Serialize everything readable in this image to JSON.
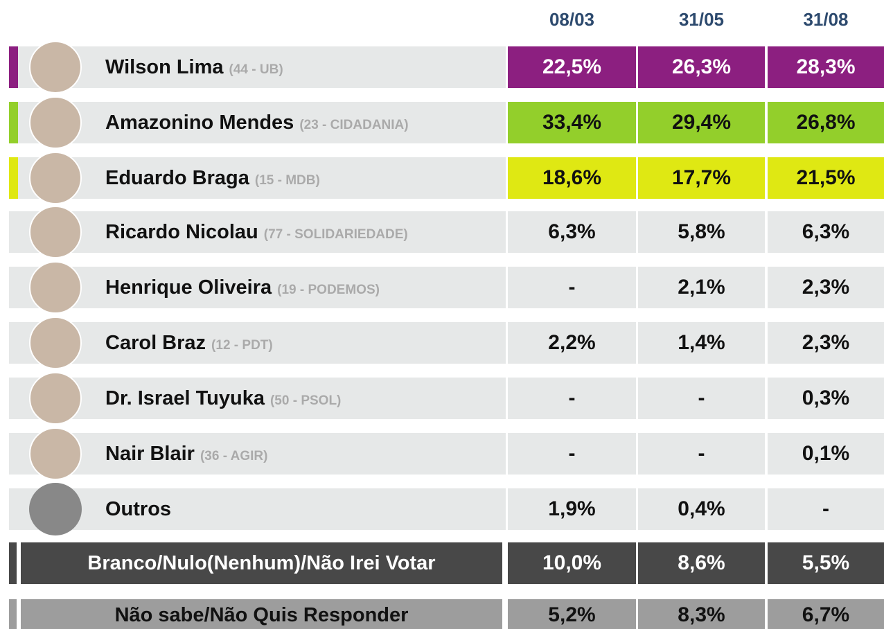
{
  "header": {
    "columns": [
      "08/03",
      "31/05",
      "31/08"
    ]
  },
  "rows": [
    {
      "name": "Wilson Lima",
      "party": "(44 - UB)",
      "values": [
        "22,5%",
        "26,3%",
        "28,3%"
      ]
    },
    {
      "name": "Amazonino Mendes",
      "party": "(23 - CIDADANIA)",
      "values": [
        "33,4%",
        "29,4%",
        "26,8%"
      ]
    },
    {
      "name": "Eduardo Braga",
      "party": "(15 - MDB)",
      "values": [
        "18,6%",
        "17,7%",
        "21,5%"
      ]
    },
    {
      "name": "Ricardo Nicolau",
      "party": "(77 - SOLIDARIEDADE)",
      "values": [
        "6,3%",
        "5,8%",
        "6,3%"
      ]
    },
    {
      "name": "Henrique Oliveira",
      "party": "(19 - PODEMOS)",
      "values": [
        "-",
        "2,1%",
        "2,3%"
      ]
    },
    {
      "name": "Carol Braz",
      "party": "(12 - PDT)",
      "values": [
        "2,2%",
        "1,4%",
        "2,3%"
      ]
    },
    {
      "name": "Dr. Israel Tuyuka",
      "party": "(50 - PSOL)",
      "values": [
        "-",
        "-",
        "0,3%"
      ]
    },
    {
      "name": "Nair Blair",
      "party": "(36 - AGIR)",
      "values": [
        "-",
        "-",
        "0,1%"
      ]
    },
    {
      "name": "Outros",
      "values": [
        "1,9%",
        "0,4%",
        "-"
      ]
    }
  ],
  "summary": [
    {
      "name": "Branco/Nulo(Nenhum)/Não Irei Votar",
      "values": [
        "10,0%",
        "8,6%",
        "5,5%"
      ]
    },
    {
      "name": "Não sabe/Não Quis Responder",
      "values": [
        "5,2%",
        "8,3%",
        "6,7%"
      ]
    }
  ]
}
